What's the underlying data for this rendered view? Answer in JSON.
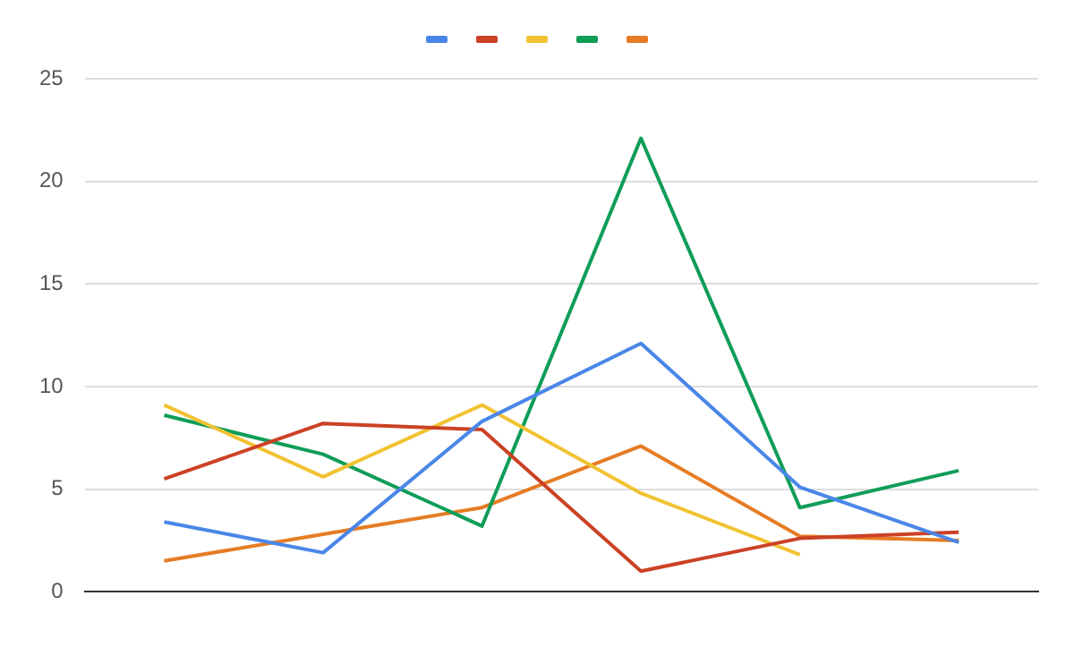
{
  "chart_data": {
    "type": "line",
    "categories": [
      null,
      null,
      null,
      null,
      null,
      null
    ],
    "series": [
      {
        "color": "#4a86e8",
        "values": [
          3.4,
          1.9,
          8.3,
          12.1,
          5.1,
          2.4
        ]
      },
      {
        "color": "#cc4125",
        "values": [
          5.5,
          8.2,
          7.9,
          1.0,
          2.6,
          2.9
        ]
      },
      {
        "color": "#f1c232",
        "values": [
          9.1,
          5.6,
          9.1,
          4.8,
          1.8,
          null
        ]
      },
      {
        "color": "#0f9d58",
        "values": [
          8.6,
          6.7,
          3.2,
          22.1,
          4.1,
          5.9
        ]
      },
      {
        "color": "#e67c24",
        "values": [
          1.5,
          2.8,
          4.1,
          7.1,
          2.7,
          2.5
        ]
      }
    ],
    "ylim": [
      0,
      25
    ],
    "yticks": [
      0,
      5,
      10,
      15,
      20,
      25
    ],
    "grid": "y",
    "marker": "none",
    "line_style": "solid"
  }
}
